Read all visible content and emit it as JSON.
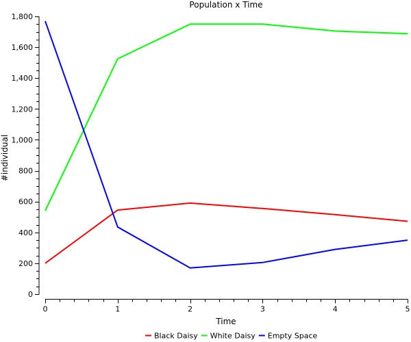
{
  "chart_data": {
    "type": "line",
    "title": "Population x Time",
    "xlabel": "Time",
    "ylabel": "#individual",
    "x": [
      0,
      1,
      2,
      3,
      4,
      5
    ],
    "xlim": [
      0,
      5
    ],
    "ylim": [
      0,
      1800
    ],
    "x_ticks": [
      "0",
      "1",
      "2",
      "3",
      "4",
      "5"
    ],
    "y_ticks": [
      "0",
      "200",
      "400",
      "600",
      "800",
      "1,000",
      "1,200",
      "1,400",
      "1,600",
      "1,800"
    ],
    "y_tick_values": [
      0,
      200,
      400,
      600,
      800,
      1000,
      1200,
      1400,
      1600,
      1800
    ],
    "grid": false,
    "legend_position": "bottom-center",
    "series": [
      {
        "name": "Black Daisy",
        "color": "#ff0000",
        "values": [
          200,
          545,
          590,
          555,
          515,
          472
        ]
      },
      {
        "name": "White Daisy",
        "color": "#00ff00",
        "values": [
          540,
          1525,
          1750,
          1750,
          1705,
          1688
        ]
      },
      {
        "name": "Empty Space",
        "color": "#0000ff",
        "values": [
          1770,
          435,
          170,
          205,
          290,
          350
        ]
      }
    ]
  }
}
